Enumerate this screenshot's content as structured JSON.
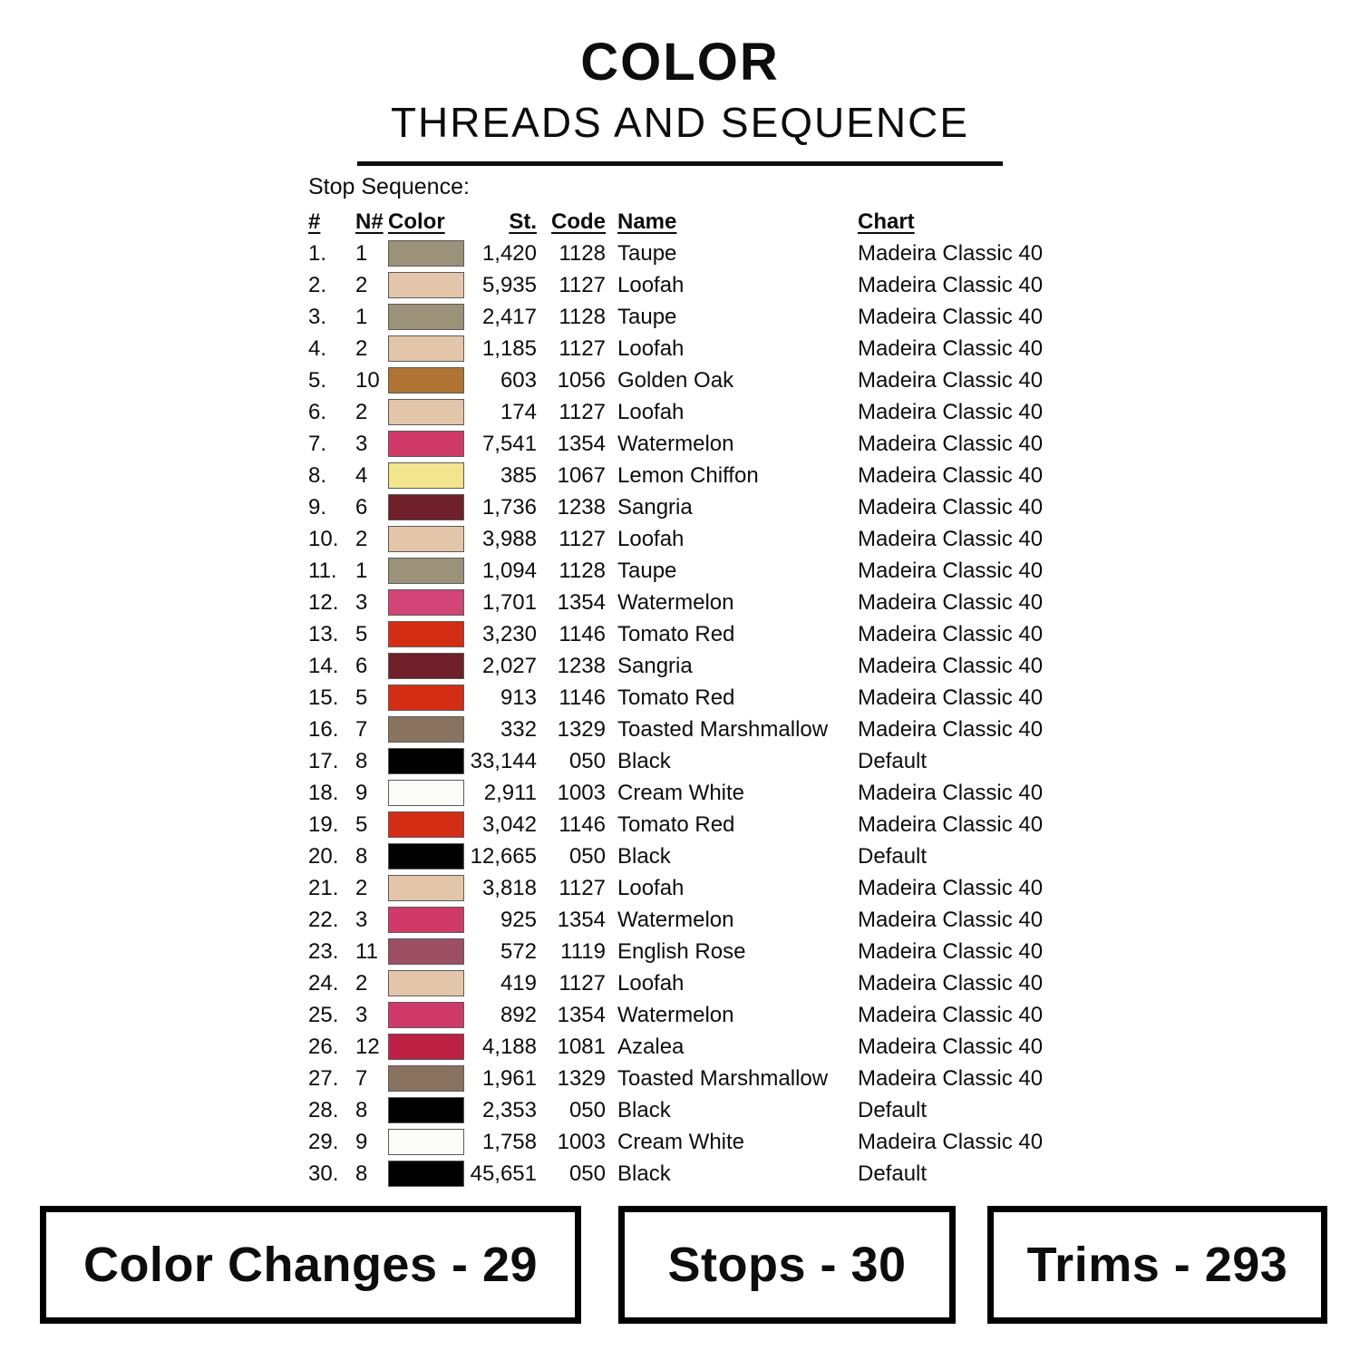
{
  "header": {
    "title_line1": "COLOR",
    "title_line2": "THREADS AND SEQUENCE"
  },
  "stop_sequence_label": "Stop Sequence:",
  "table": {
    "headers": {
      "num": "#",
      "n": "N#",
      "color": "Color",
      "st": "St.",
      "code": "Code",
      "name": "Name",
      "chart": "Chart"
    },
    "rows": [
      {
        "num": "1.",
        "n": "1",
        "swatch": "#9B9279",
        "st": "1,420",
        "code": "1128",
        "name": "Taupe",
        "chart": "Madeira Classic 40"
      },
      {
        "num": "2.",
        "n": "2",
        "swatch": "#E3C6A9",
        "st": "5,935",
        "code": "1127",
        "name": "Loofah",
        "chart": "Madeira Classic 40"
      },
      {
        "num": "3.",
        "n": "1",
        "swatch": "#9B9279",
        "st": "2,417",
        "code": "1128",
        "name": "Taupe",
        "chart": "Madeira Classic 40"
      },
      {
        "num": "4.",
        "n": "2",
        "swatch": "#E3C6A9",
        "st": "1,185",
        "code": "1127",
        "name": "Loofah",
        "chart": "Madeira Classic 40"
      },
      {
        "num": "5.",
        "n": "10",
        "swatch": "#AF7434",
        "st": "603",
        "code": "1056",
        "name": "Golden Oak",
        "chart": "Madeira Classic 40"
      },
      {
        "num": "6.",
        "n": "2",
        "swatch": "#E3C6A9",
        "st": "174",
        "code": "1127",
        "name": "Loofah",
        "chart": "Madeira Classic 40"
      },
      {
        "num": "7.",
        "n": "3",
        "swatch": "#D03A68",
        "st": "7,541",
        "code": "1354",
        "name": "Watermelon",
        "chart": "Madeira Classic 40"
      },
      {
        "num": "8.",
        "n": "4",
        "swatch": "#F3E48E",
        "st": "385",
        "code": "1067",
        "name": "Lemon Chiffon",
        "chart": "Madeira Classic 40"
      },
      {
        "num": "9.",
        "n": "6",
        "swatch": "#6E1F2A",
        "st": "1,736",
        "code": "1238",
        "name": "Sangria",
        "chart": "Madeira Classic 40"
      },
      {
        "num": "10.",
        "n": "2",
        "swatch": "#E3C6A9",
        "st": "3,988",
        "code": "1127",
        "name": "Loofah",
        "chart": "Madeira Classic 40"
      },
      {
        "num": "11.",
        "n": "1",
        "swatch": "#9B9279",
        "st": "1,094",
        "code": "1128",
        "name": "Taupe",
        "chart": "Madeira Classic 40"
      },
      {
        "num": "12.",
        "n": "3",
        "swatch": "#D34477",
        "st": "1,701",
        "code": "1354",
        "name": "Watermelon",
        "chart": "Madeira Classic 40"
      },
      {
        "num": "13.",
        "n": "5",
        "swatch": "#D32D13",
        "st": "3,230",
        "code": "1146",
        "name": "Tomato Red",
        "chart": "Madeira Classic 40"
      },
      {
        "num": "14.",
        "n": "6",
        "swatch": "#6E1F2A",
        "st": "2,027",
        "code": "1238",
        "name": "Sangria",
        "chart": "Madeira Classic 40"
      },
      {
        "num": "15.",
        "n": "5",
        "swatch": "#D32D13",
        "st": "913",
        "code": "1146",
        "name": "Tomato Red",
        "chart": "Madeira Classic 40"
      },
      {
        "num": "16.",
        "n": "7",
        "swatch": "#8A7260",
        "st": "332",
        "code": "1329",
        "name": "Toasted Marshmallow",
        "chart": "Madeira Classic 40"
      },
      {
        "num": "17.",
        "n": "8",
        "swatch": "#000000",
        "st": "33,144",
        "code": "050",
        "name": "Black",
        "chart": "Default"
      },
      {
        "num": "18.",
        "n": "9",
        "swatch": "#FCFDF9",
        "st": "2,911",
        "code": "1003",
        "name": "Cream White",
        "chart": "Madeira Classic 40"
      },
      {
        "num": "19.",
        "n": "5",
        "swatch": "#D32D13",
        "st": "3,042",
        "code": "1146",
        "name": "Tomato Red",
        "chart": "Madeira Classic 40"
      },
      {
        "num": "20.",
        "n": "8",
        "swatch": "#000000",
        "st": "12,665",
        "code": "050",
        "name": "Black",
        "chart": "Default"
      },
      {
        "num": "21.",
        "n": "2",
        "swatch": "#E3C6A9",
        "st": "3,818",
        "code": "1127",
        "name": "Loofah",
        "chart": "Madeira Classic 40"
      },
      {
        "num": "22.",
        "n": "3",
        "swatch": "#D03A68",
        "st": "925",
        "code": "1354",
        "name": "Watermelon",
        "chart": "Madeira Classic 40"
      },
      {
        "num": "23.",
        "n": "11",
        "swatch": "#9C4F62",
        "st": "572",
        "code": "1119",
        "name": "English Rose",
        "chart": "Madeira Classic 40"
      },
      {
        "num": "24.",
        "n": "2",
        "swatch": "#E3C6A9",
        "st": "419",
        "code": "1127",
        "name": "Loofah",
        "chart": "Madeira Classic 40"
      },
      {
        "num": "25.",
        "n": "3",
        "swatch": "#D03A68",
        "st": "892",
        "code": "1354",
        "name": "Watermelon",
        "chart": "Madeira Classic 40"
      },
      {
        "num": "26.",
        "n": "12",
        "swatch": "#BC2144",
        "st": "4,188",
        "code": "1081",
        "name": "Azalea",
        "chart": "Madeira Classic 40"
      },
      {
        "num": "27.",
        "n": "7",
        "swatch": "#8A7260",
        "st": "1,961",
        "code": "1329",
        "name": "Toasted Marshmallow",
        "chart": "Madeira Classic 40"
      },
      {
        "num": "28.",
        "n": "8",
        "swatch": "#000000",
        "st": "2,353",
        "code": "050",
        "name": "Black",
        "chart": "Default"
      },
      {
        "num": "29.",
        "n": "9",
        "swatch": "#FCFDF9",
        "st": "1,758",
        "code": "1003",
        "name": "Cream White",
        "chart": "Madeira Classic 40"
      },
      {
        "num": "30.",
        "n": "8",
        "swatch": "#000000",
        "st": "45,651",
        "code": "050",
        "name": "Black",
        "chart": "Default"
      }
    ]
  },
  "footer": {
    "color_changes": "Color Changes - 29",
    "stops": "Stops - 30",
    "trims": "Trims - 293"
  },
  "colors": {
    "text": "#0d0d0d",
    "rule": "#0d0d0d",
    "box_border": "#000000",
    "swatch_border": "#5a5a5a"
  }
}
